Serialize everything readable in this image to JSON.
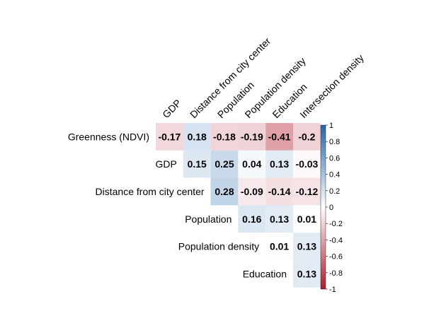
{
  "chart_data": {
    "type": "heatmap",
    "layout": "upper-triangle correlation matrix",
    "title": "",
    "column_labels": [
      "GDP",
      "Distance from city center",
      "Population",
      "Population density",
      "Education",
      "Intersection density"
    ],
    "row_labels": [
      "Greenness (NDVI)",
      "GDP",
      "Distance from city center",
      "Population",
      "Population density",
      "Education"
    ],
    "values": [
      [
        -0.17,
        0.18,
        -0.18,
        -0.19,
        -0.41,
        -0.2
      ],
      [
        null,
        0.15,
        0.25,
        0.04,
        0.13,
        -0.03
      ],
      [
        null,
        null,
        0.28,
        -0.09,
        -0.14,
        -0.12
      ],
      [
        null,
        null,
        null,
        0.16,
        0.13,
        0.01
      ],
      [
        null,
        null,
        null,
        null,
        0.01,
        0.13
      ],
      [
        null,
        null,
        null,
        null,
        null,
        0.13
      ]
    ],
    "value_labels": [
      [
        "-0.17",
        "0.18",
        "-0.18",
        "-0.19",
        "-0.41",
        "-0.2"
      ],
      [
        null,
        "0.15",
        "0.25",
        "0.04",
        "0.13",
        "-0.03"
      ],
      [
        null,
        null,
        "0.28",
        "-0.09",
        "-0.14",
        "-0.12"
      ],
      [
        null,
        null,
        null,
        "0.16",
        "0.13",
        "0.01"
      ],
      [
        null,
        null,
        null,
        null,
        "0.01",
        "0.13"
      ],
      [
        null,
        null,
        null,
        null,
        null,
        "0.13"
      ]
    ],
    "color_scale": {
      "range": [
        -1,
        1
      ],
      "negative_color": "#b2182b",
      "zero_color": "#ffffff",
      "positive_color": "#2166ac",
      "colorbar_ticks": [
        "1",
        "0.8",
        "0.6",
        "0.4",
        "0.2",
        "0",
        "-0.2",
        "-0.4",
        "-0.6",
        "-0.8",
        "-1"
      ],
      "colorbar_values": [
        1,
        0.8,
        0.6,
        0.4,
        0.2,
        0,
        -0.2,
        -0.4,
        -0.6,
        -0.8,
        -1
      ]
    },
    "legend_position": "right"
  }
}
